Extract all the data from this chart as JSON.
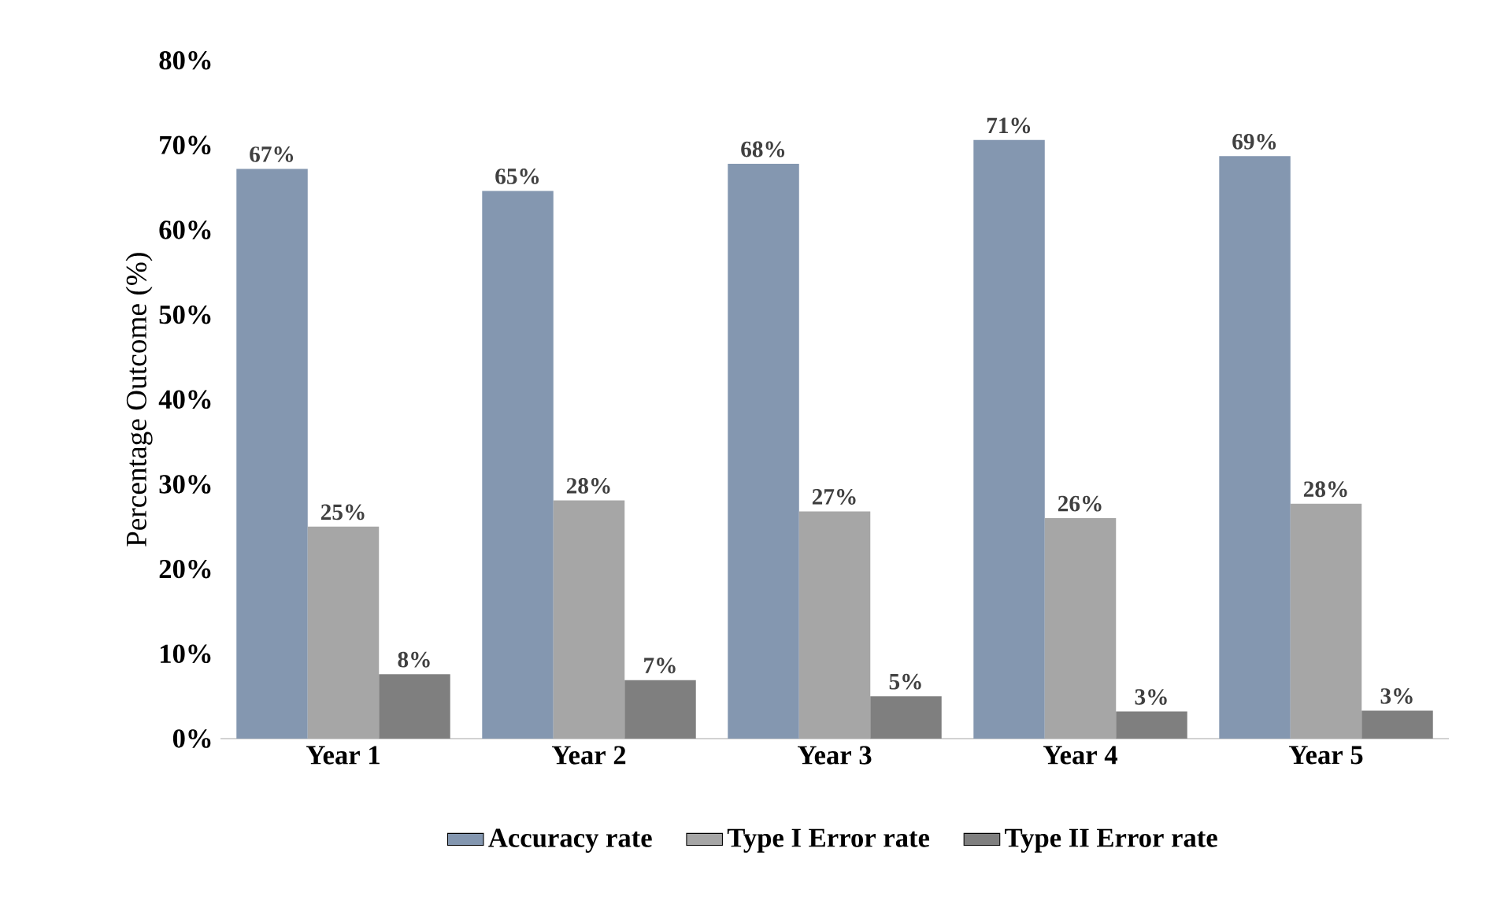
{
  "chart_data": {
    "type": "bar",
    "ylabel": "Percentage Outcome (%)",
    "categories": [
      "Year 1",
      "Year 2",
      "Year 3",
      "Year 4",
      "Year 5"
    ],
    "series": [
      {
        "name": "Accuracy rate",
        "color": "#8497b0",
        "values": [
          67.2,
          64.6,
          67.8,
          70.6,
          68.7
        ],
        "value_labels": [
          "67%",
          "65%",
          "68%",
          "71%",
          "69%"
        ]
      },
      {
        "name": "Type I Error rate",
        "color": "#a6a6a6",
        "values": [
          25.0,
          28.1,
          26.8,
          26.0,
          27.7
        ],
        "value_labels": [
          "25%",
          "28%",
          "27%",
          "26%",
          "28%"
        ]
      },
      {
        "name": "Type II Error rate",
        "color": "#7f7f7f",
        "values": [
          7.6,
          6.9,
          5.0,
          3.2,
          3.3
        ],
        "value_labels": [
          "8%",
          "7%",
          "5%",
          "3%",
          "3%"
        ]
      }
    ],
    "ylim": [
      0,
      80
    ],
    "yticks": [
      {
        "value": 0,
        "label": "0%"
      },
      {
        "value": 10,
        "label": "10%"
      },
      {
        "value": 20,
        "label": "20%"
      },
      {
        "value": 30,
        "label": "30%"
      },
      {
        "value": 40,
        "label": "40%"
      },
      {
        "value": 50,
        "label": "50%"
      },
      {
        "value": 60,
        "label": "60%"
      },
      {
        "value": 70,
        "label": "70%"
      },
      {
        "value": 80,
        "label": "80%"
      }
    ],
    "legend": "bottom"
  }
}
